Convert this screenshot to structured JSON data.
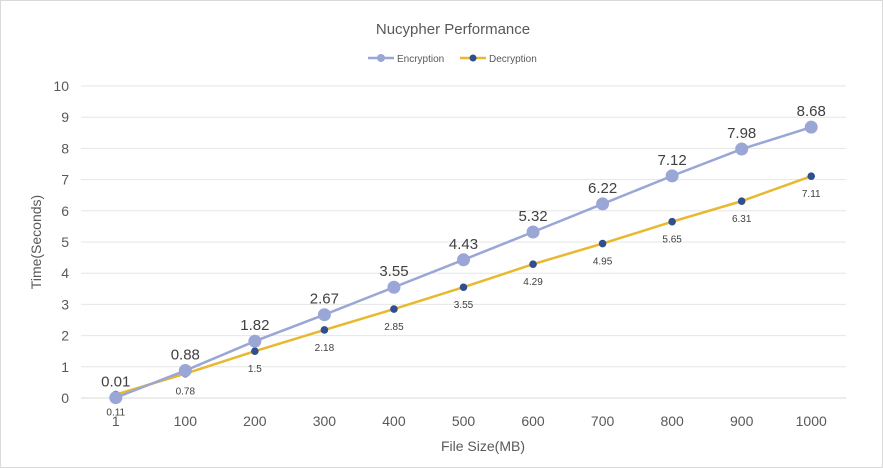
{
  "chart_data": {
    "type": "line",
    "title": "Nucypher Performance",
    "xlabel": "File Size(MB)",
    "ylabel": "Time(Seconds)",
    "categories": [
      "1",
      "100",
      "200",
      "300",
      "400",
      "500",
      "600",
      "700",
      "800",
      "900",
      "1000"
    ],
    "ylim": [
      0,
      10
    ],
    "yticks": [
      "0",
      "1",
      "2",
      "3",
      "4",
      "5",
      "6",
      "7",
      "8",
      "9",
      "10"
    ],
    "grid": true,
    "legend_position": "top-center",
    "series": [
      {
        "name": "Encryption",
        "color": "#9aa6d6",
        "values": [
          0.01,
          0.88,
          1.82,
          2.67,
          3.55,
          4.43,
          5.32,
          6.22,
          7.12,
          7.98,
          8.68
        ],
        "labels": [
          "0.01",
          "0.88",
          "1.82",
          "2.67",
          "3.55",
          "4.43",
          "5.32",
          "6.22",
          "7.12",
          "7.98",
          "8.68"
        ]
      },
      {
        "name": "Decryption",
        "color": "#e8b92e",
        "marker_color": "#2f4f8f",
        "values": [
          0.11,
          0.78,
          1.5,
          2.18,
          2.85,
          3.55,
          4.29,
          4.95,
          5.65,
          6.31,
          7.11
        ],
        "labels": [
          "0.11",
          "0.78",
          "1.5",
          "2.18",
          "2.85",
          "3.55",
          "4.29",
          "4.95",
          "5.65",
          "6.31",
          "7.11"
        ]
      }
    ]
  }
}
